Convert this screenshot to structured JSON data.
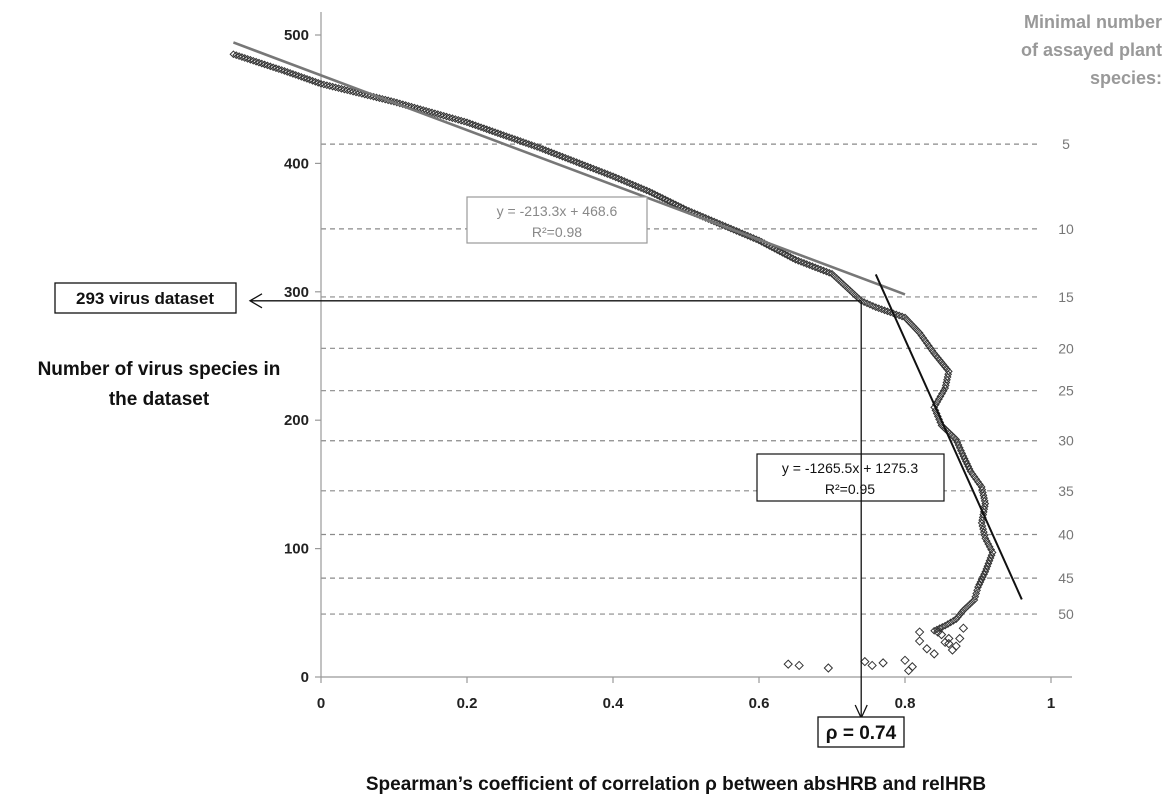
{
  "chart_data": {
    "type": "scatter",
    "title": "",
    "xlabel": "Spearman’s coefficient of correlation ρ between absHRB and relHRB",
    "ylabel": [
      "Number of virus species in",
      "the dataset"
    ],
    "xlim": [
      0,
      1
    ],
    "ylim": [
      0,
      500
    ],
    "x_ticks": [
      0,
      0.2,
      0.4,
      0.6,
      0.8,
      1
    ],
    "x_tick_labels": [
      "0",
      "0.2",
      "0.4",
      "0.6",
      "0.8",
      "1"
    ],
    "y_ticks": [
      0,
      100,
      200,
      300,
      400,
      500
    ],
    "y_tick_labels": [
      "0",
      "100",
      "200",
      "300",
      "400",
      "500"
    ],
    "grid": false,
    "side_title": [
      "Minimal number",
      "of assayed plant",
      "species:"
    ],
    "thresholds": [
      {
        "label": "5",
        "y": 415
      },
      {
        "label": "10",
        "y": 349
      },
      {
        "label": "15",
        "y": 296
      },
      {
        "label": "20",
        "y": 256
      },
      {
        "label": "25",
        "y": 223
      },
      {
        "label": "30",
        "y": 184
      },
      {
        "label": "35",
        "y": 145
      },
      {
        "label": "40",
        "y": 111
      },
      {
        "label": "45",
        "y": 77
      },
      {
        "label": "50",
        "y": 49
      }
    ],
    "trendlines": [
      {
        "slope": -213.3,
        "intercept": 468.6,
        "x_range": [
          -0.12,
          0.8
        ],
        "equation": "y = -213.3x + 468.6",
        "r2": "R²=0.98",
        "color": "#777777"
      },
      {
        "slope": -1265.5,
        "intercept": 1275.3,
        "x_range": [
          0.76,
          0.96
        ],
        "equation": "y = -1265.5x + 1275.3",
        "r2": "R²=0.95",
        "color": "#111111"
      }
    ],
    "series_curve": [
      [
        -0.12,
        485
      ],
      [
        -0.05,
        472
      ],
      [
        0.0,
        462
      ],
      [
        0.1,
        448
      ],
      [
        0.2,
        432
      ],
      [
        0.3,
        412
      ],
      [
        0.4,
        390
      ],
      [
        0.45,
        378
      ],
      [
        0.5,
        364
      ],
      [
        0.55,
        352
      ],
      [
        0.6,
        340
      ],
      [
        0.65,
        325
      ],
      [
        0.7,
        314
      ],
      [
        0.74,
        293
      ],
      [
        0.76,
        288
      ],
      [
        0.8,
        280
      ],
      [
        0.82,
        268
      ],
      [
        0.84,
        252
      ],
      [
        0.86,
        238
      ],
      [
        0.855,
        225
      ],
      [
        0.84,
        210
      ],
      [
        0.85,
        196
      ],
      [
        0.87,
        185
      ],
      [
        0.88,
        172
      ],
      [
        0.89,
        160
      ],
      [
        0.905,
        148
      ],
      [
        0.91,
        135
      ],
      [
        0.905,
        120
      ],
      [
        0.91,
        108
      ],
      [
        0.92,
        97
      ],
      [
        0.91,
        82
      ],
      [
        0.9,
        70
      ],
      [
        0.895,
        60
      ],
      [
        0.88,
        52
      ],
      [
        0.87,
        45
      ],
      [
        0.855,
        40
      ],
      [
        0.84,
        36
      ]
    ],
    "series_scatter": [
      [
        0.64,
        10
      ],
      [
        0.655,
        9
      ],
      [
        0.695,
        7
      ],
      [
        0.745,
        12
      ],
      [
        0.755,
        9
      ],
      [
        0.77,
        11
      ],
      [
        0.8,
        13
      ],
      [
        0.81,
        8
      ],
      [
        0.805,
        5
      ],
      [
        0.82,
        28
      ],
      [
        0.83,
        22
      ],
      [
        0.84,
        18
      ],
      [
        0.85,
        33
      ],
      [
        0.86,
        26
      ],
      [
        0.87,
        24
      ],
      [
        0.845,
        35
      ],
      [
        0.82,
        35
      ],
      [
        0.86,
        30
      ],
      [
        0.875,
        30
      ],
      [
        0.88,
        38
      ],
      [
        0.865,
        21
      ],
      [
        0.855,
        27
      ]
    ],
    "annotation_293": {
      "x": 0.74,
      "y": 293,
      "label": "293 virus dataset"
    },
    "annotation_rho": {
      "label": "ρ = 0.74"
    }
  }
}
